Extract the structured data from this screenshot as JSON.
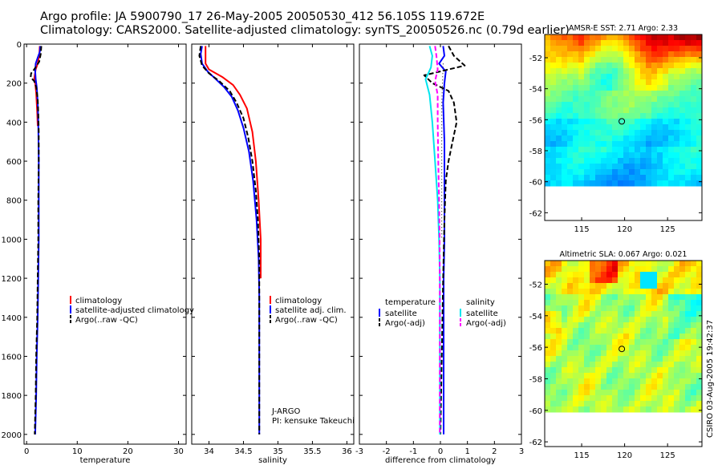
{
  "header": {
    "title_line1": "Argo profile: JA 5900790_17 26-May-2005 20050530_412 56.105S 119.672E",
    "title_line2": "Climatology: CARS2000. Satellite-adjusted climatology: synTS_20050526.nc (0.79d earlier)"
  },
  "credit": "CSIRO 03-Aug-2005 19:42:37",
  "colors": {
    "climatology": "#ff0000",
    "satellite": "#0000ff",
    "argo": "#000000",
    "salinity": "#00e5ee",
    "salinity_argo": "#ff00ff"
  },
  "chart_data": [
    {
      "type": "line",
      "xlabel": "temperature",
      "ylabel": "",
      "xlim": [
        -0.5,
        31.5
      ],
      "ylim": [
        2050,
        0
      ],
      "xticks": [
        0,
        10,
        20,
        30
      ],
      "yticks": [
        0,
        200,
        400,
        600,
        800,
        1000,
        1200,
        1400,
        1600,
        1800,
        2000
      ],
      "legend": [
        "climatology",
        "satellite-adjusted climatology",
        "Argo(..raw -QC)"
      ],
      "series": [
        {
          "name": "climatology",
          "color": "#ff0000",
          "style": "solid",
          "points": [
            [
              2.6,
              10
            ],
            [
              2.5,
              60
            ],
            [
              2.2,
              100
            ],
            [
              1.8,
              130
            ],
            [
              1.6,
              160
            ],
            [
              1.5,
              180
            ],
            [
              1.7,
              200
            ],
            [
              1.9,
              250
            ],
            [
              2.1,
              350
            ],
            [
              2.2,
              420
            ]
          ]
        },
        {
          "name": "satellite-adjusted climatology",
          "color": "#0000ff",
          "style": "solid",
          "points": [
            [
              2.7,
              10
            ],
            [
              2.6,
              40
            ],
            [
              2.2,
              70
            ],
            [
              1.8,
              100
            ],
            [
              1.7,
              140
            ],
            [
              1.8,
              180
            ],
            [
              2.0,
              220
            ],
            [
              2.2,
              300
            ],
            [
              2.3,
              400
            ],
            [
              2.4,
              600
            ],
            [
              2.4,
              800
            ],
            [
              2.4,
              1000
            ],
            [
              2.3,
              1200
            ],
            [
              2.2,
              1400
            ],
            [
              2.0,
              1600
            ],
            [
              1.9,
              1800
            ],
            [
              1.7,
              2000
            ]
          ]
        },
        {
          "name": "Argo(..raw -QC)",
          "color": "#000000",
          "style": "dashed",
          "points": [
            [
              2.9,
              10
            ],
            [
              2.8,
              50
            ],
            [
              2.5,
              90
            ],
            [
              1.5,
              130
            ],
            [
              0.9,
              150
            ],
            [
              0.8,
              170
            ],
            [
              1.5,
              190
            ],
            [
              1.9,
              220
            ],
            [
              2.2,
              280
            ],
            [
              2.3,
              350
            ],
            [
              2.4,
              450
            ],
            [
              2.4,
              600
            ],
            [
              2.3,
              800
            ],
            [
              2.3,
              1000
            ],
            [
              2.2,
              1200
            ],
            [
              2.1,
              1400
            ],
            [
              1.9,
              1600
            ],
            [
              1.8,
              1800
            ],
            [
              1.6,
              2000
            ]
          ]
        }
      ]
    },
    {
      "type": "line",
      "xlabel": "salinity",
      "ylabel": "",
      "xlim": [
        33.75,
        36.1
      ],
      "ylim": [
        2050,
        0
      ],
      "xticks": [
        34,
        34.5,
        35,
        35.5,
        36
      ],
      "legend": [
        "climatology",
        "satellite adj. clim.",
        "Argo(..raw -QC)"
      ],
      "annotation": [
        "J-ARGO",
        "PI: kensuke Takeuchi"
      ],
      "series": [
        {
          "name": "climatology",
          "color": "#ff0000",
          "style": "solid",
          "points": [
            [
              33.95,
              10
            ],
            [
              33.95,
              60
            ],
            [
              33.95,
              100
            ],
            [
              34.0,
              130
            ],
            [
              34.2,
              170
            ],
            [
              34.35,
              210
            ],
            [
              34.45,
              260
            ],
            [
              34.55,
              330
            ],
            [
              34.63,
              450
            ],
            [
              34.68,
              600
            ],
            [
              34.72,
              800
            ],
            [
              34.75,
              1000
            ],
            [
              34.75,
              1200
            ]
          ]
        },
        {
          "name": "satellite adj. clim.",
          "color": "#0000ff",
          "style": "solid",
          "points": [
            [
              33.9,
              10
            ],
            [
              33.88,
              50
            ],
            [
              33.9,
              100
            ],
            [
              33.98,
              140
            ],
            [
              34.1,
              180
            ],
            [
              34.22,
              220
            ],
            [
              34.33,
              270
            ],
            [
              34.42,
              340
            ],
            [
              34.5,
              430
            ],
            [
              34.58,
              550
            ],
            [
              34.64,
              700
            ],
            [
              34.69,
              900
            ],
            [
              34.72,
              1100
            ],
            [
              34.73,
              1300
            ],
            [
              34.73,
              1600
            ],
            [
              34.73,
              2000
            ]
          ]
        },
        {
          "name": "Argo(..raw -QC)",
          "color": "#000000",
          "style": "dashed",
          "points": [
            [
              33.88,
              10
            ],
            [
              33.86,
              60
            ],
            [
              33.9,
              110
            ],
            [
              34.0,
              150
            ],
            [
              34.15,
              190
            ],
            [
              34.3,
              240
            ],
            [
              34.4,
              300
            ],
            [
              34.5,
              380
            ],
            [
              34.57,
              480
            ],
            [
              34.63,
              600
            ],
            [
              34.68,
              750
            ],
            [
              34.71,
              900
            ],
            [
              34.73,
              1100
            ],
            [
              34.73,
              1300
            ],
            [
              34.73,
              1600
            ],
            [
              34.73,
              2000
            ]
          ]
        }
      ]
    },
    {
      "type": "line",
      "xlabel": "difference from climatology",
      "ylabel": "",
      "xlim": [
        -3,
        3
      ],
      "ylim": [
        2050,
        0
      ],
      "xticks": [
        -3,
        -2,
        -1,
        0,
        1,
        2,
        3
      ],
      "legend_left_header": "temperature",
      "legend_left": [
        "satellite",
        "Argo(-adj)"
      ],
      "legend_right_header": "salinity",
      "legend_right": [
        "satellite",
        "Argo(-adj)"
      ],
      "series": [
        {
          "name": "temperature satellite",
          "color": "#0000ff",
          "style": "solid",
          "points": [
            [
              0.1,
              10
            ],
            [
              0.15,
              60
            ],
            [
              -0.05,
              100
            ],
            [
              0.2,
              140
            ],
            [
              0.15,
              200
            ],
            [
              0.1,
              300
            ],
            [
              0.15,
              500
            ],
            [
              0.15,
              800
            ],
            [
              0.15,
              1000
            ],
            [
              0.12,
              1200
            ],
            [
              0.12,
              1600
            ],
            [
              0.12,
              2000
            ]
          ]
        },
        {
          "name": "temperature Argo(-adj)",
          "color": "#000000",
          "style": "dashed",
          "points": [
            [
              0.3,
              10
            ],
            [
              0.5,
              60
            ],
            [
              0.9,
              110
            ],
            [
              -0.6,
              160
            ],
            [
              -0.3,
              200
            ],
            [
              0.3,
              240
            ],
            [
              0.5,
              300
            ],
            [
              0.6,
              400
            ],
            [
              0.45,
              500
            ],
            [
              0.3,
              600
            ],
            [
              0.2,
              700
            ],
            [
              0.15,
              900
            ],
            [
              0.1,
              1200
            ],
            [
              0.05,
              1600
            ],
            [
              0.0,
              2000
            ]
          ]
        },
        {
          "name": "temperature Argo dotted",
          "color": "#000000",
          "style": "dotted",
          "points": [
            [
              0.1,
              100
            ],
            [
              0.05,
              300
            ],
            [
              0.05,
              600
            ],
            [
              0.05,
              1000
            ]
          ]
        },
        {
          "name": "salinity satellite",
          "color": "#00e5ee",
          "style": "solid",
          "points": [
            [
              -0.4,
              10
            ],
            [
              -0.3,
              60
            ],
            [
              -0.35,
              120
            ],
            [
              -0.55,
              180
            ],
            [
              -0.4,
              260
            ],
            [
              -0.3,
              400
            ],
            [
              -0.2,
              600
            ],
            [
              -0.1,
              800
            ],
            [
              -0.05,
              1000
            ],
            [
              -0.02,
              1200
            ],
            [
              -0.02,
              1600
            ],
            [
              -0.02,
              2000
            ]
          ]
        },
        {
          "name": "salinity Argo(-adj)",
          "color": "#ff00ff",
          "style": "dashed",
          "points": [
            [
              -0.2,
              10
            ],
            [
              -0.15,
              60
            ],
            [
              -0.1,
              130
            ],
            [
              -0.2,
              190
            ],
            [
              -0.1,
              260
            ],
            [
              -0.1,
              400
            ],
            [
              -0.08,
              600
            ],
            [
              -0.05,
              800
            ],
            [
              -0.03,
              1000
            ],
            [
              -0.02,
              1300
            ],
            [
              -0.02,
              1600
            ],
            [
              -0.02,
              2000
            ]
          ]
        }
      ]
    },
    {
      "type": "heatmap",
      "title": "AMSR-E SST: 2.71 Argo: 2.33",
      "xlim": [
        110.7,
        129
      ],
      "ylim": [
        -62.5,
        -50.5
      ],
      "xticks": [
        115,
        120,
        125
      ],
      "yticks": [
        -52,
        -54,
        -56,
        -58,
        -60,
        -62
      ],
      "marker": {
        "lon": 119.672,
        "lat": -56.105
      },
      "data_extent_lat_min": -60
    },
    {
      "type": "heatmap",
      "title": "Altimetric SLA: 0.067 Argo: 0.021",
      "xlim": [
        110.7,
        129
      ],
      "ylim": [
        -62.3,
        -50.5
      ],
      "xticks": [
        115,
        120,
        125
      ],
      "yticks": [
        -52,
        -54,
        -56,
        -58,
        -60,
        -62
      ],
      "marker": {
        "lon": 119.672,
        "lat": -56.105
      },
      "data_extent_lat_min": -60
    }
  ]
}
